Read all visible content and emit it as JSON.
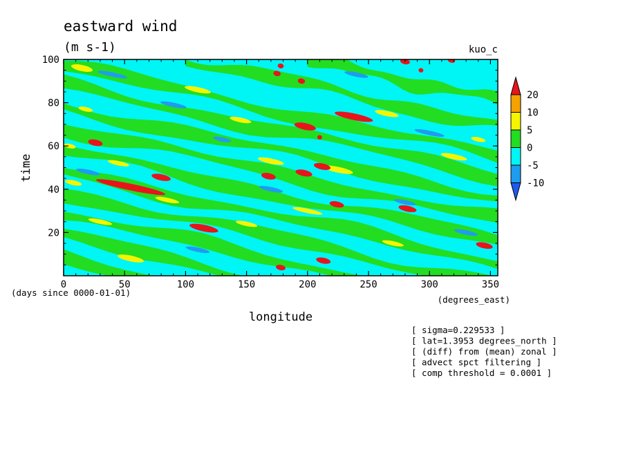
{
  "chart_data": {
    "type": "heatmap",
    "title": "eastward wind",
    "units": "(m s-1)",
    "model": "kuo_c",
    "xlabel": "longitude",
    "xunits": "(degrees_east)",
    "ylabel": "time",
    "yunits": "(days since 0000-01-01)",
    "xlim": [
      0,
      356
    ],
    "ylim": [
      0,
      100
    ],
    "xticks": [
      0,
      50,
      100,
      150,
      200,
      250,
      300,
      350
    ],
    "yticks": [
      20,
      40,
      60,
      80,
      100
    ],
    "colorbar": {
      "labels": [
        "20",
        "10",
        "5",
        "0",
        "-5",
        "-10"
      ],
      "bins": [
        {
          "range": "> 20",
          "color": "#e8141c"
        },
        {
          "range": "10 to 20",
          "color": "#f5a200"
        },
        {
          "range": "5 to 10",
          "color": "#f5f500"
        },
        {
          "range": "0 to 5",
          "color": "#22dd22"
        },
        {
          "range": "-5 to 0",
          "color": "#00f5f5"
        },
        {
          "range": "-10 to -5",
          "color": "#1e9cf0"
        },
        {
          "range": "< -10",
          "color": "#1e5af0"
        }
      ]
    },
    "bands": [
      {
        "value": 2,
        "x0": 0,
        "y0": 97,
        "x1": 356,
        "y1": 55
      },
      {
        "value": 2,
        "x0": 0,
        "y0": 88,
        "x1": 356,
        "y1": 46
      },
      {
        "value": 2,
        "x0": 0,
        "y0": 78,
        "x1": 356,
        "y1": 36
      },
      {
        "value": 2,
        "x0": 0,
        "y0": 68,
        "x1": 356,
        "y1": 26
      },
      {
        "value": 2,
        "x0": 0,
        "y0": 58,
        "x1": 356,
        "y1": 16
      },
      {
        "value": 2,
        "x0": 0,
        "y0": 48,
        "x1": 356,
        "y1": 6
      },
      {
        "value": 2,
        "x0": 0,
        "y0": 38,
        "x1": 356,
        "y1": -4
      },
      {
        "value": 2,
        "x0": 0,
        "y0": 28,
        "x1": 356,
        "y1": -14
      },
      {
        "value": 2,
        "x0": 0,
        "y0": 18,
        "x1": 356,
        "y1": -24
      },
      {
        "value": 2,
        "x0": 0,
        "y0": 8,
        "x1": 356,
        "y1": -34
      },
      {
        "value": 2,
        "x0": 100,
        "y0": 100,
        "x1": 356,
        "y1": 69
      },
      {
        "value": 2,
        "x0": 200,
        "y0": 100,
        "x1": 356,
        "y1": 81
      }
    ],
    "patches": [
      {
        "value": 7,
        "x": 15,
        "y": 96,
        "len": 18,
        "w": 1.4
      },
      {
        "value": 7,
        "x": 110,
        "y": 86,
        "len": 22,
        "w": 1.2
      },
      {
        "value": 7,
        "x": 18,
        "y": 77,
        "len": 12,
        "w": 1.0
      },
      {
        "value": 7,
        "x": 145,
        "y": 72,
        "len": 18,
        "w": 1.1
      },
      {
        "value": 7,
        "x": 265,
        "y": 75,
        "len": 20,
        "w": 1.2
      },
      {
        "value": 7,
        "x": 5,
        "y": 60,
        "len": 10,
        "w": 1.0
      },
      {
        "value": 7,
        "x": 45,
        "y": 52,
        "len": 18,
        "w": 1.0
      },
      {
        "value": 7,
        "x": 170,
        "y": 53,
        "len": 22,
        "w": 1.2
      },
      {
        "value": 7,
        "x": 225,
        "y": 49,
        "len": 25,
        "w": 1.3
      },
      {
        "value": 7,
        "x": 320,
        "y": 55,
        "len": 22,
        "w": 1.2
      },
      {
        "value": 7,
        "x": 8,
        "y": 43,
        "len": 14,
        "w": 1.1
      },
      {
        "value": 7,
        "x": 85,
        "y": 35,
        "len": 20,
        "w": 1.0
      },
      {
        "value": 7,
        "x": 200,
        "y": 30,
        "len": 25,
        "w": 1.0
      },
      {
        "value": 7,
        "x": 30,
        "y": 25,
        "len": 20,
        "w": 1.0
      },
      {
        "value": 7,
        "x": 150,
        "y": 24,
        "len": 18,
        "w": 1.0
      },
      {
        "value": 7,
        "x": 55,
        "y": 8,
        "len": 22,
        "w": 1.3
      },
      {
        "value": 7,
        "x": 270,
        "y": 15,
        "len": 18,
        "w": 1.0
      },
      {
        "value": 7,
        "x": 340,
        "y": 63,
        "len": 12,
        "w": 1.0
      },
      {
        "value": -7,
        "x": 40,
        "y": 93,
        "len": 25,
        "w": 1.0
      },
      {
        "value": -7,
        "x": 240,
        "y": 93,
        "len": 20,
        "w": 1.0
      },
      {
        "value": -7,
        "x": 90,
        "y": 79,
        "len": 22,
        "w": 1.0
      },
      {
        "value": -7,
        "x": 300,
        "y": 66,
        "len": 25,
        "w": 1.0
      },
      {
        "value": -7,
        "x": 130,
        "y": 63,
        "len": 15,
        "w": 1.0
      },
      {
        "value": -7,
        "x": 20,
        "y": 48,
        "len": 20,
        "w": 1.0
      },
      {
        "value": -7,
        "x": 170,
        "y": 40,
        "len": 20,
        "w": 1.0
      },
      {
        "value": -7,
        "x": 280,
        "y": 34,
        "len": 18,
        "w": 1.0
      },
      {
        "value": -7,
        "x": 110,
        "y": 12,
        "len": 20,
        "w": 1.0
      },
      {
        "value": -7,
        "x": 330,
        "y": 20,
        "len": 20,
        "w": 1.0
      },
      {
        "value": 25,
        "x": 26,
        "y": 61.5,
        "len": 12,
        "w": 1.4
      },
      {
        "value": 25,
        "x": 55,
        "y": 41,
        "len": 58,
        "w": 1.5
      },
      {
        "value": 25,
        "x": 80,
        "y": 45.5,
        "len": 16,
        "w": 1.4
      },
      {
        "value": 25,
        "x": 115,
        "y": 22,
        "len": 24,
        "w": 1.5
      },
      {
        "value": 25,
        "x": 168,
        "y": 46,
        "len": 12,
        "w": 1.4
      },
      {
        "value": 25,
        "x": 197,
        "y": 47.5,
        "len": 14,
        "w": 1.4
      },
      {
        "value": 25,
        "x": 212,
        "y": 50.5,
        "len": 14,
        "w": 1.4
      },
      {
        "value": 25,
        "x": 198,
        "y": 69,
        "len": 18,
        "w": 1.5
      },
      {
        "value": 25,
        "x": 238,
        "y": 73.5,
        "len": 32,
        "w": 1.5
      },
      {
        "value": 25,
        "x": 224,
        "y": 33,
        "len": 12,
        "w": 1.3
      },
      {
        "value": 25,
        "x": 282,
        "y": 31,
        "len": 15,
        "w": 1.3
      },
      {
        "value": 25,
        "x": 345,
        "y": 14,
        "len": 14,
        "w": 1.3
      },
      {
        "value": 25,
        "x": 178,
        "y": 3.8,
        "len": 8,
        "w": 1.2
      },
      {
        "value": 25,
        "x": 213,
        "y": 7,
        "len": 12,
        "w": 1.3
      },
      {
        "value": 25,
        "x": 175,
        "y": 93.5,
        "len": 6,
        "w": 1.2
      },
      {
        "value": 25,
        "x": 195,
        "y": 90,
        "len": 6,
        "w": 1.2
      },
      {
        "value": 25,
        "x": 178,
        "y": 97,
        "len": 5,
        "w": 1.1
      },
      {
        "value": 25,
        "x": 280,
        "y": 99,
        "len": 8,
        "w": 1.2
      },
      {
        "value": 25,
        "x": 293,
        "y": 95,
        "len": 4,
        "w": 1.0
      },
      {
        "value": 25,
        "x": 318,
        "y": 99.5,
        "len": 6,
        "w": 1.0
      },
      {
        "value": 25,
        "x": 210,
        "y": 64,
        "len": 4,
        "w": 1.0
      }
    ],
    "notes": [
      "[ sigma=0.229533 ]",
      "[ lat=1.3953 degrees_north ]",
      "[ (diff) from (mean) zonal ]",
      "[ advect spct filtering ]",
      "[ comp threshold = 0.0001 ]"
    ]
  }
}
